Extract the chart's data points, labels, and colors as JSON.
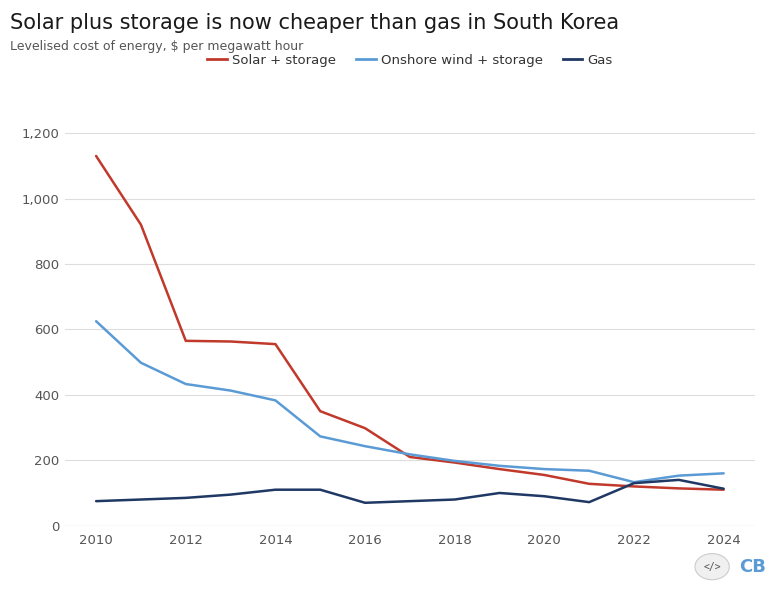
{
  "title": "Solar plus storage is now cheaper than gas in South Korea",
  "subtitle": "Levelised cost of energy, $ per megawatt hour",
  "years": [
    2010,
    2011,
    2012,
    2013,
    2014,
    2015,
    2016,
    2017,
    2018,
    2019,
    2020,
    2021,
    2022,
    2023,
    2024
  ],
  "solar_storage": [
    1130,
    920,
    565,
    563,
    555,
    350,
    298,
    210,
    193,
    173,
    155,
    128,
    120,
    114,
    110
  ],
  "wind_storage": [
    625,
    498,
    433,
    413,
    383,
    273,
    243,
    218,
    198,
    183,
    173,
    168,
    133,
    153,
    160
  ],
  "gas": [
    75,
    80,
    85,
    95,
    110,
    110,
    70,
    75,
    80,
    100,
    90,
    72,
    130,
    140,
    113
  ],
  "solar_color": "#c0392b",
  "wind_color": "#5b9bd5",
  "gas_color": "#1f3864",
  "bg_color": "#ffffff",
  "grid_color": "#dddddd",
  "title_color": "#1a1a1a",
  "subtitle_color": "#555555",
  "tick_color": "#555555",
  "ylim": [
    0,
    1280
  ],
  "yticks": [
    0,
    200,
    400,
    600,
    800,
    1000,
    1200
  ],
  "xticks": [
    2010,
    2012,
    2014,
    2016,
    2018,
    2020,
    2022,
    2024
  ],
  "legend_labels": [
    "Solar + storage",
    "Onshore wind + storage",
    "Gas"
  ],
  "legend_colors": [
    "#c0392b",
    "#5b9bd5",
    "#1f3864"
  ],
  "line_width": 1.8,
  "title_fontsize": 15,
  "subtitle_fontsize": 9,
  "tick_fontsize": 9.5,
  "legend_fontsize": 9.5,
  "logo_circle_color": "#e8e8e8",
  "logo_code_color": "#555555",
  "logo_cb_color": "#5b9bd5"
}
